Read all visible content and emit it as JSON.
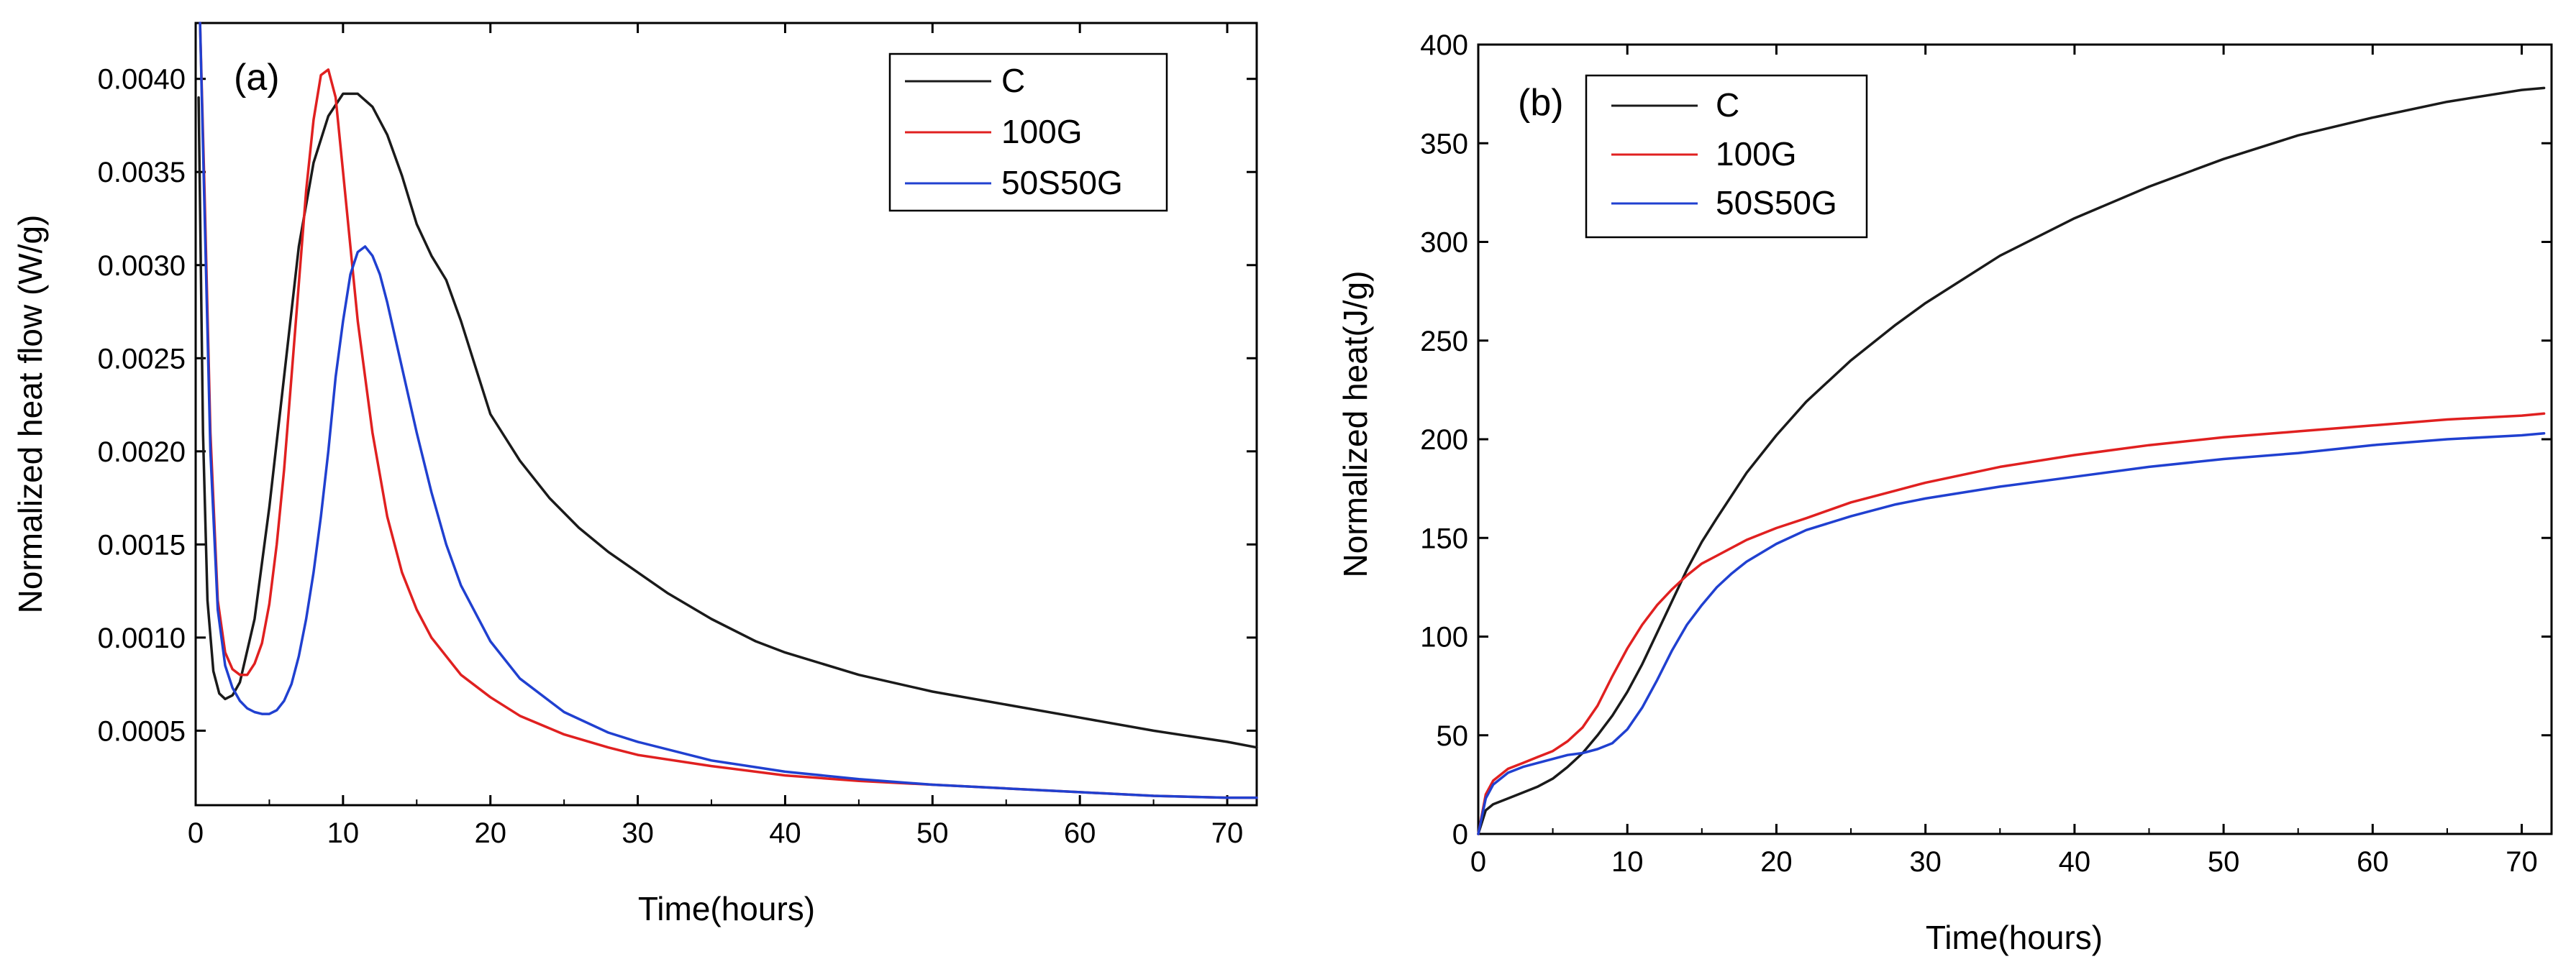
{
  "chart_data": [
    {
      "type": "line",
      "panel_label": "(a)",
      "xlabel": "Time(hours)",
      "ylabel": "Normalized heat flow (W/g)",
      "xlim": [
        0,
        72
      ],
      "ylim": [
        0.0001,
        0.0043
      ],
      "xticks": [
        0,
        10,
        20,
        30,
        40,
        50,
        60,
        70
      ],
      "yticks": [
        0.0005,
        0.001,
        0.0015,
        0.002,
        0.0025,
        0.003,
        0.0035,
        0.004
      ],
      "ytick_labels": [
        "0.0005",
        "0.0010",
        "0.0015",
        "0.0020",
        "0.0025",
        "0.0030",
        "0.0035",
        "0.0040"
      ],
      "legend_position": "top-right",
      "series": [
        {
          "name": "C",
          "color": "#1a1a1a",
          "x": [
            0.2,
            0.5,
            0.8,
            1.2,
            1.6,
            2,
            2.5,
            3,
            4,
            5,
            6,
            7,
            8,
            9,
            10,
            11,
            12,
            13,
            14,
            15,
            16,
            17,
            18,
            19,
            20,
            22,
            24,
            26,
            28,
            30,
            32,
            35,
            38,
            40,
            45,
            50,
            55,
            60,
            65,
            70,
            72
          ],
          "y": [
            0.0039,
            0.0021,
            0.0012,
            0.00082,
            0.0007,
            0.00067,
            0.00069,
            0.00076,
            0.0011,
            0.0017,
            0.0024,
            0.0031,
            0.00355,
            0.0038,
            0.00392,
            0.00392,
            0.00385,
            0.0037,
            0.00348,
            0.00322,
            0.00305,
            0.00292,
            0.0027,
            0.00245,
            0.0022,
            0.00195,
            0.00175,
            0.00159,
            0.00146,
            0.00135,
            0.00124,
            0.0011,
            0.00098,
            0.00092,
            0.0008,
            0.00071,
            0.00064,
            0.00057,
            0.0005,
            0.00044,
            0.00041
          ]
        },
        {
          "name": "100G",
          "color": "#e02020",
          "x": [
            0.3,
            0.6,
            1,
            1.5,
            2,
            2.5,
            3,
            3.5,
            4,
            4.5,
            5,
            5.5,
            6,
            6.5,
            7,
            7.5,
            8,
            8.5,
            9,
            9.5,
            10,
            11,
            12,
            13,
            14,
            15,
            16,
            18,
            20,
            22,
            25,
            28,
            30,
            35,
            40,
            45,
            50,
            55,
            60,
            65,
            70,
            72
          ],
          "y": [
            0.0043,
            0.0034,
            0.0021,
            0.0012,
            0.00092,
            0.00083,
            0.0008,
            0.0008,
            0.00086,
            0.00097,
            0.00118,
            0.0015,
            0.0019,
            0.0024,
            0.0029,
            0.0034,
            0.00378,
            0.00402,
            0.00405,
            0.0039,
            0.0035,
            0.0027,
            0.0021,
            0.00165,
            0.00135,
            0.00115,
            0.001,
            0.0008,
            0.00068,
            0.00058,
            0.00048,
            0.00041,
            0.00037,
            0.00031,
            0.00026,
            0.00023,
            0.00021,
            0.00019,
            0.00017,
            0.00015,
            0.00014,
            0.00014
          ]
        },
        {
          "name": "50S50G",
          "color": "#2040d0",
          "x": [
            0.3,
            0.6,
            1,
            1.5,
            2,
            2.5,
            3,
            3.5,
            4,
            4.5,
            5,
            5.5,
            6,
            6.5,
            7,
            7.5,
            8,
            8.5,
            9,
            9.5,
            10,
            10.5,
            11,
            11.5,
            12,
            12.5,
            13,
            14,
            15,
            16,
            17,
            18,
            20,
            22,
            25,
            28,
            30,
            35,
            40,
            45,
            50,
            55,
            60,
            65,
            70,
            72
          ],
          "y": [
            0.0043,
            0.0033,
            0.002,
            0.00115,
            0.00085,
            0.00073,
            0.00066,
            0.00062,
            0.0006,
            0.00059,
            0.00059,
            0.00061,
            0.00066,
            0.00075,
            0.0009,
            0.0011,
            0.00135,
            0.00165,
            0.002,
            0.0024,
            0.0027,
            0.00295,
            0.00307,
            0.0031,
            0.00305,
            0.00295,
            0.0028,
            0.00245,
            0.0021,
            0.00178,
            0.0015,
            0.00128,
            0.00098,
            0.00078,
            0.0006,
            0.00049,
            0.00044,
            0.00034,
            0.00028,
            0.00024,
            0.00021,
            0.00019,
            0.00017,
            0.00015,
            0.00014,
            0.00014
          ]
        }
      ]
    },
    {
      "type": "line",
      "panel_label": "(b)",
      "xlabel": "Time(hours)",
      "ylabel": "Normalized heat(J/g)",
      "xlim": [
        0,
        72
      ],
      "ylim": [
        0,
        400
      ],
      "xticks": [
        0,
        10,
        20,
        30,
        40,
        50,
        60,
        70
      ],
      "yticks": [
        0,
        50,
        100,
        150,
        200,
        250,
        300,
        350,
        400
      ],
      "ytick_labels": [
        "0",
        "50",
        "100",
        "150",
        "200",
        "250",
        "300",
        "350",
        "400"
      ],
      "legend_position": "top-left",
      "series": [
        {
          "name": "C",
          "color": "#1a1a1a",
          "x": [
            0,
            0.5,
            1,
            2,
            3,
            4,
            5,
            6,
            7,
            8,
            9,
            10,
            11,
            12,
            13,
            14,
            15,
            16,
            18,
            20,
            22,
            25,
            28,
            30,
            35,
            40,
            45,
            50,
            55,
            60,
            65,
            70,
            71.5
          ],
          "y": [
            0,
            12,
            15,
            18,
            21,
            24,
            28,
            34,
            41,
            50,
            60,
            72,
            86,
            102,
            118,
            134,
            148,
            160,
            183,
            202,
            219,
            240,
            258,
            269,
            293,
            312,
            328,
            342,
            354,
            363,
            371,
            377,
            378
          ]
        },
        {
          "name": "100G",
          "color": "#e02020",
          "x": [
            0,
            0.5,
            1,
            2,
            3,
            4,
            5,
            6,
            7,
            8,
            9,
            10,
            11,
            12,
            13,
            14,
            15,
            16,
            18,
            20,
            22,
            25,
            28,
            30,
            35,
            40,
            45,
            50,
            55,
            60,
            65,
            70,
            71.5
          ],
          "y": [
            0,
            20,
            27,
            33,
            36,
            39,
            42,
            47,
            54,
            65,
            80,
            94,
            106,
            116,
            124,
            131,
            137,
            141,
            149,
            155,
            160,
            168,
            174,
            178,
            186,
            192,
            197,
            201,
            204,
            207,
            210,
            212,
            213
          ]
        },
        {
          "name": "50S50G",
          "color": "#2040d0",
          "x": [
            0,
            0.5,
            1,
            2,
            3,
            4,
            5,
            6,
            7,
            8,
            9,
            10,
            11,
            12,
            13,
            14,
            15,
            16,
            17,
            18,
            20,
            22,
            25,
            28,
            30,
            35,
            40,
            45,
            50,
            55,
            60,
            65,
            70,
            71.5
          ],
          "y": [
            0,
            18,
            25,
            31,
            34,
            36,
            38,
            40,
            41,
            43,
            46,
            53,
            64,
            78,
            93,
            106,
            116,
            125,
            132,
            138,
            147,
            154,
            161,
            167,
            170,
            176,
            181,
            186,
            190,
            193,
            197,
            200,
            202,
            203
          ]
        }
      ]
    }
  ]
}
